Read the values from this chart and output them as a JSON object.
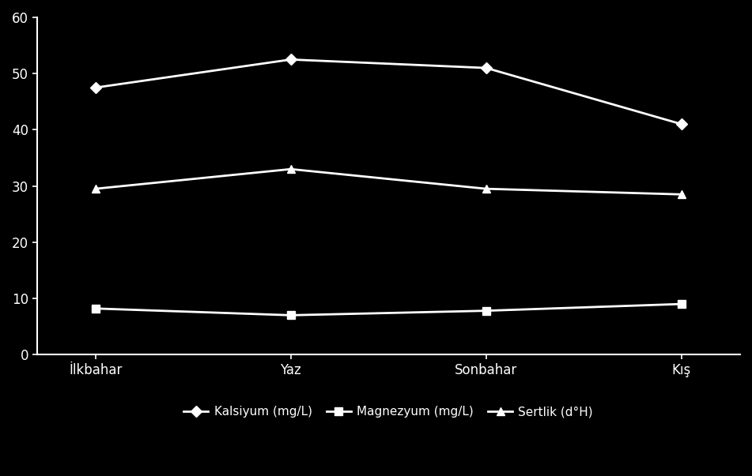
{
  "categories": [
    "İlkbahar",
    "Yaz",
    "Sonbahar",
    "Kış"
  ],
  "series": [
    {
      "name": "Kalsiyum (mg/L)",
      "values": [
        47.5,
        52.5,
        51.0,
        41.0
      ],
      "color": "#ffffff",
      "marker": "D",
      "markersize": 7,
      "linewidth": 2.0
    },
    {
      "name": "Magnezyum (mg/L)",
      "values": [
        8.2,
        7.0,
        7.8,
        9.0
      ],
      "color": "#ffffff",
      "marker": "s",
      "markersize": 7,
      "linewidth": 2.0
    },
    {
      "name": "Sertlik (d°H)",
      "values": [
        29.5,
        33.0,
        29.5,
        28.5
      ],
      "color": "#ffffff",
      "marker": "^",
      "markersize": 7,
      "linewidth": 2.0
    }
  ],
  "ylim": [
    0,
    60
  ],
  "yticks": [
    0,
    10,
    20,
    30,
    40,
    50,
    60
  ],
  "background_color": "#000000",
  "text_color": "#ffffff",
  "tick_label_fontsize": 12,
  "legend_fontsize": 11
}
